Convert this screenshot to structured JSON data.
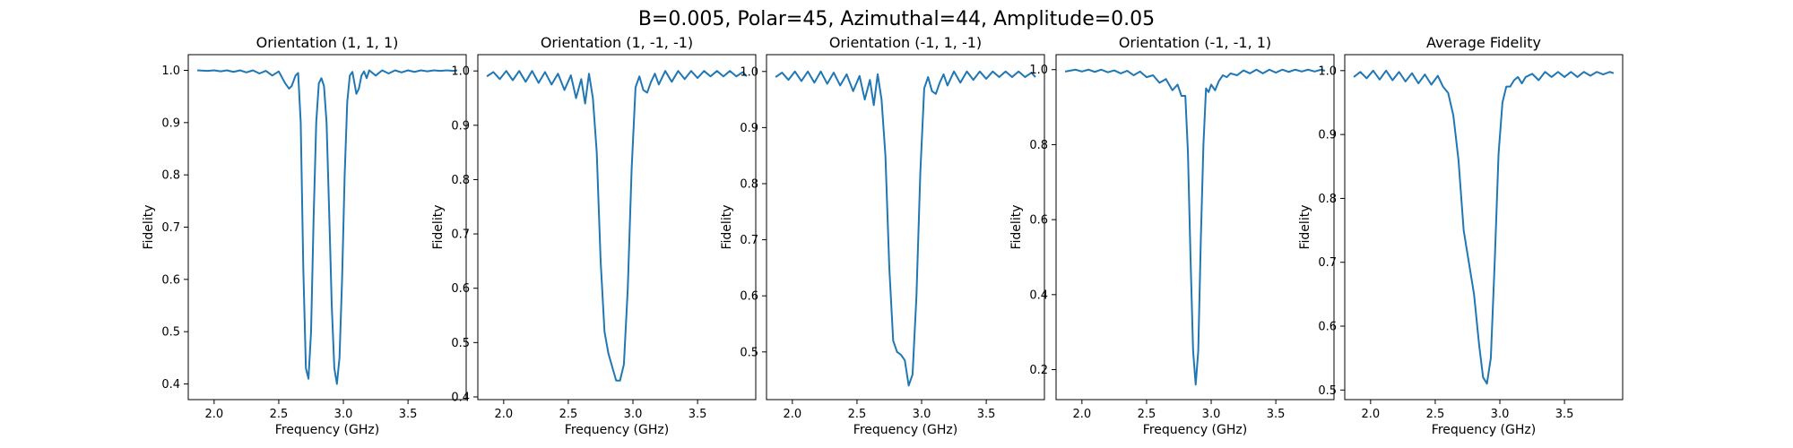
{
  "figure": {
    "suptitle": "B=0.005, Polar=45, Azimuthal=44, Amplitude=0.05"
  },
  "colors": {
    "series": "#1f77b4"
  },
  "chart_data": [
    {
      "type": "line",
      "title": "Orientation (1, 1, 1)",
      "xlabel": "Frequency (GHz)",
      "ylabel": "Fidelity",
      "xlim": [
        1.8,
        3.95
      ],
      "ylim": [
        0.37,
        1.03
      ],
      "xticks": [
        2.0,
        2.5,
        3.0,
        3.5
      ],
      "xtick_labels": [
        "2.0",
        "2.5",
        "3.0",
        "3.5"
      ],
      "yticks": [
        0.4,
        0.5,
        0.6,
        0.7,
        0.8,
        0.9,
        1.0
      ],
      "ytick_labels": [
        "0.4",
        "0.5",
        "0.6",
        "0.7",
        "0.8",
        "0.9",
        "1.0"
      ],
      "series": [
        {
          "x": [
            1.87,
            1.95,
            2.0,
            2.05,
            2.1,
            2.15,
            2.2,
            2.25,
            2.3,
            2.35,
            2.4,
            2.45,
            2.5,
            2.55,
            2.58,
            2.6,
            2.63,
            2.65,
            2.67,
            2.69,
            2.71,
            2.73,
            2.75,
            2.77,
            2.79,
            2.81,
            2.83,
            2.85,
            2.87,
            2.89,
            2.91,
            2.93,
            2.95,
            2.97,
            2.99,
            3.01,
            3.03,
            3.05,
            3.07,
            3.09,
            3.1,
            3.12,
            3.14,
            3.16,
            3.18,
            3.2,
            3.25,
            3.3,
            3.35,
            3.4,
            3.45,
            3.5,
            3.55,
            3.6,
            3.65,
            3.7,
            3.75,
            3.8,
            3.85,
            3.88
          ],
          "y": [
            1.0,
            0.999,
            1.0,
            0.998,
            1.0,
            0.997,
            1.0,
            0.996,
            1.0,
            0.994,
            0.999,
            0.99,
            0.998,
            0.975,
            0.965,
            0.97,
            0.99,
            0.995,
            0.9,
            0.62,
            0.43,
            0.41,
            0.5,
            0.72,
            0.9,
            0.975,
            0.985,
            0.97,
            0.9,
            0.73,
            0.55,
            0.43,
            0.4,
            0.45,
            0.6,
            0.8,
            0.94,
            0.99,
            0.997,
            0.97,
            0.955,
            0.965,
            0.99,
            0.998,
            0.985,
            1.0,
            0.99,
            1.0,
            0.994,
            1.0,
            0.996,
            1.0,
            0.997,
            1.0,
            0.998,
            1.0,
            0.999,
            1.0,
            0.999,
            1.0
          ]
        }
      ]
    },
    {
      "type": "line",
      "title": "Orientation (1, -1, -1)",
      "xlabel": "Frequency (GHz)",
      "ylabel": "Fidelity",
      "xlim": [
        1.8,
        3.95
      ],
      "ylim": [
        0.395,
        1.03
      ],
      "xticks": [
        2.0,
        2.5,
        3.0,
        3.5
      ],
      "xtick_labels": [
        "2.0",
        "2.5",
        "3.0",
        "3.5"
      ],
      "yticks": [
        0.4,
        0.5,
        0.6,
        0.7,
        0.8,
        0.9,
        1.0
      ],
      "ytick_labels": [
        "0.4",
        "0.5",
        "0.6",
        "0.7",
        "0.8",
        "0.9",
        "1.0"
      ],
      "series": [
        {
          "x": [
            1.87,
            1.92,
            1.97,
            2.02,
            2.07,
            2.12,
            2.17,
            2.22,
            2.27,
            2.32,
            2.37,
            2.42,
            2.47,
            2.52,
            2.56,
            2.6,
            2.63,
            2.66,
            2.69,
            2.72,
            2.75,
            2.78,
            2.81,
            2.84,
            2.87,
            2.9,
            2.93,
            2.96,
            2.99,
            3.02,
            3.05,
            3.08,
            3.11,
            3.14,
            3.17,
            3.2,
            3.25,
            3.3,
            3.35,
            3.4,
            3.45,
            3.5,
            3.55,
            3.6,
            3.65,
            3.7,
            3.75,
            3.8,
            3.85,
            3.88
          ],
          "y": [
            0.99,
            0.998,
            0.985,
            1.0,
            0.983,
            1.0,
            0.98,
            1.0,
            0.978,
            0.998,
            0.975,
            0.995,
            0.965,
            0.992,
            0.95,
            0.985,
            0.94,
            0.995,
            0.95,
            0.85,
            0.65,
            0.52,
            0.48,
            0.455,
            0.43,
            0.43,
            0.46,
            0.6,
            0.82,
            0.97,
            0.99,
            0.965,
            0.96,
            0.98,
            0.995,
            0.975,
            1.0,
            0.98,
            1.0,
            0.985,
            1.0,
            0.987,
            1.0,
            0.99,
            1.0,
            0.99,
            1.0,
            0.99,
            0.998,
            0.99
          ]
        }
      ]
    },
    {
      "type": "line",
      "title": "Orientation (-1, 1, -1)",
      "xlabel": "Frequency (GHz)",
      "ylabel": "Fidelity",
      "xlim": [
        1.8,
        3.95
      ],
      "ylim": [
        0.415,
        1.03
      ],
      "xticks": [
        2.0,
        2.5,
        3.0,
        3.5
      ],
      "xtick_labels": [
        "2.0",
        "2.5",
        "3.0",
        "3.5"
      ],
      "yticks": [
        0.5,
        0.6,
        0.7,
        0.8,
        0.9,
        1.0
      ],
      "ytick_labels": [
        "0.5",
        "0.6",
        "0.7",
        "0.8",
        "0.9",
        "1.0"
      ],
      "series": [
        {
          "x": [
            1.87,
            1.92,
            1.97,
            2.02,
            2.07,
            2.12,
            2.17,
            2.22,
            2.27,
            2.32,
            2.37,
            2.42,
            2.47,
            2.52,
            2.56,
            2.6,
            2.63,
            2.66,
            2.69,
            2.72,
            2.75,
            2.78,
            2.81,
            2.84,
            2.87,
            2.9,
            2.93,
            2.96,
            2.99,
            3.02,
            3.05,
            3.08,
            3.11,
            3.14,
            3.17,
            3.2,
            3.25,
            3.3,
            3.35,
            3.4,
            3.45,
            3.5,
            3.55,
            3.6,
            3.65,
            3.7,
            3.75,
            3.8,
            3.85,
            3.88
          ],
          "y": [
            0.99,
            0.998,
            0.985,
            1.0,
            0.983,
            1.0,
            0.98,
            1.0,
            0.978,
            0.998,
            0.975,
            0.995,
            0.965,
            0.992,
            0.95,
            0.985,
            0.94,
            0.995,
            0.95,
            0.85,
            0.65,
            0.52,
            0.5,
            0.495,
            0.485,
            0.44,
            0.46,
            0.6,
            0.82,
            0.97,
            0.99,
            0.965,
            0.96,
            0.98,
            0.995,
            0.975,
            1.0,
            0.98,
            1.0,
            0.985,
            1.0,
            0.987,
            1.0,
            0.99,
            1.0,
            0.99,
            1.0,
            0.99,
            0.998,
            0.99
          ]
        }
      ]
    },
    {
      "type": "line",
      "title": "Orientation (-1, -1, 1)",
      "xlabel": "Frequency (GHz)",
      "ylabel": "Fidelity",
      "xlim": [
        1.8,
        3.95
      ],
      "ylim": [
        0.12,
        1.04
      ],
      "xticks": [
        2.0,
        2.5,
        3.0,
        3.5
      ],
      "xtick_labels": [
        "2.0",
        "2.5",
        "3.0",
        "3.5"
      ],
      "yticks": [
        0.2,
        0.4,
        0.6,
        0.8,
        1.0
      ],
      "ytick_labels": [
        "0.2",
        "0.4",
        "0.6",
        "0.8",
        "1.0"
      ],
      "series": [
        {
          "x": [
            1.87,
            1.95,
            2.0,
            2.05,
            2.1,
            2.15,
            2.2,
            2.25,
            2.3,
            2.35,
            2.4,
            2.45,
            2.5,
            2.55,
            2.6,
            2.65,
            2.7,
            2.74,
            2.77,
            2.8,
            2.82,
            2.84,
            2.86,
            2.88,
            2.9,
            2.92,
            2.94,
            2.96,
            2.98,
            3.0,
            3.03,
            3.06,
            3.09,
            3.12,
            3.15,
            3.2,
            3.25,
            3.3,
            3.35,
            3.4,
            3.45,
            3.5,
            3.55,
            3.6,
            3.65,
            3.7,
            3.75,
            3.8,
            3.85,
            3.88
          ],
          "y": [
            0.995,
            1.0,
            0.995,
            1.0,
            0.994,
            1.0,
            0.993,
            0.998,
            0.99,
            0.997,
            0.985,
            0.995,
            0.98,
            0.985,
            0.965,
            0.975,
            0.945,
            0.96,
            0.93,
            0.93,
            0.78,
            0.5,
            0.25,
            0.16,
            0.25,
            0.55,
            0.8,
            0.95,
            0.94,
            0.96,
            0.945,
            0.97,
            0.985,
            0.98,
            0.99,
            0.985,
            0.998,
            0.99,
            1.0,
            0.99,
            1.0,
            0.992,
            1.0,
            0.994,
            1.0,
            0.995,
            1.0,
            0.995,
            1.0,
            0.997
          ]
        }
      ]
    },
    {
      "type": "line",
      "title": "Average Fidelity",
      "xlabel": "Frequency (GHz)",
      "ylabel": "Fidelity",
      "xlim": [
        1.8,
        3.95
      ],
      "ylim": [
        0.485,
        1.025
      ],
      "xticks": [
        2.0,
        2.5,
        3.0,
        3.5
      ],
      "xtick_labels": [
        "2.0",
        "2.5",
        "3.0",
        "3.5"
      ],
      "yticks": [
        0.5,
        0.6,
        0.7,
        0.8,
        0.9,
        1.0
      ],
      "ytick_labels": [
        "0.5",
        "0.6",
        "0.7",
        "0.8",
        "0.9",
        "1.0"
      ],
      "series": [
        {
          "x": [
            1.87,
            1.92,
            1.97,
            2.02,
            2.07,
            2.12,
            2.17,
            2.22,
            2.27,
            2.32,
            2.37,
            2.42,
            2.47,
            2.52,
            2.56,
            2.6,
            2.64,
            2.68,
            2.72,
            2.76,
            2.8,
            2.84,
            2.87,
            2.9,
            2.93,
            2.96,
            2.99,
            3.02,
            3.05,
            3.08,
            3.11,
            3.14,
            3.17,
            3.2,
            3.25,
            3.3,
            3.35,
            3.4,
            3.45,
            3.5,
            3.55,
            3.6,
            3.65,
            3.7,
            3.75,
            3.8,
            3.85,
            3.88
          ],
          "y": [
            0.99,
            0.998,
            0.988,
            1.0,
            0.986,
            1.0,
            0.985,
            0.998,
            0.983,
            0.996,
            0.98,
            0.994,
            0.978,
            0.992,
            0.975,
            0.965,
            0.93,
            0.86,
            0.75,
            0.7,
            0.65,
            0.57,
            0.52,
            0.51,
            0.55,
            0.7,
            0.87,
            0.95,
            0.975,
            0.975,
            0.985,
            0.99,
            0.98,
            0.99,
            0.995,
            0.985,
            0.998,
            0.99,
            0.998,
            0.99,
            0.998,
            0.99,
            0.998,
            0.992,
            0.998,
            0.994,
            0.998,
            0.996
          ]
        }
      ]
    }
  ]
}
